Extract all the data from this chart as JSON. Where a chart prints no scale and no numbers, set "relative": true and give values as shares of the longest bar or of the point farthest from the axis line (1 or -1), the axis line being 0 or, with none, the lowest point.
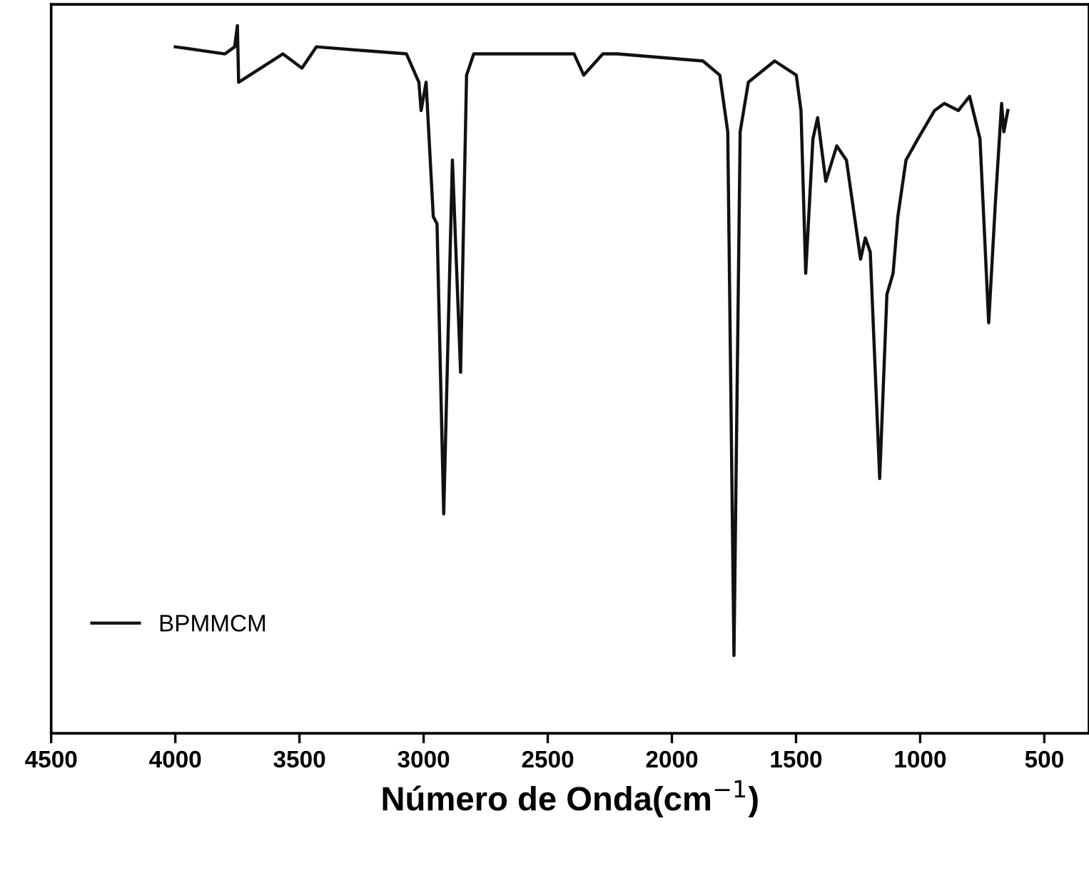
{
  "chart_data": {
    "type": "line",
    "xlabel": "Número de Onda(cm$^{−1}$)",
    "relative": true,
    "xlim": [
      4500,
      320
    ],
    "xticks": [
      4500,
      4000,
      3500,
      3000,
      2500,
      2000,
      1500,
      1000,
      500
    ],
    "legend": "bottom left",
    "grid": false,
    "series": [
      {
        "name": "BPMMCM",
        "color": "#111111",
        "x": [
          4000,
          3800,
          3761,
          3750,
          3745,
          3567,
          3490,
          3432,
          3069,
          3019,
          3010,
          2990,
          2961,
          2946,
          2919,
          2884,
          2851,
          2827,
          2798,
          2394,
          2355,
          2278,
          2221,
          1875,
          1807,
          1775,
          1750,
          1725,
          1692,
          1586,
          1499,
          1480,
          1461,
          1432,
          1413,
          1380,
          1336,
          1297,
          1240,
          1221,
          1201,
          1163,
          1134,
          1109,
          1090,
          1057,
          1009,
          942,
          903,
          846,
          801,
          759,
          724,
          697,
          672,
          663,
          647
        ],
        "values": [
          0.97,
          0.96,
          0.97,
          1.0,
          0.92,
          0.96,
          0.94,
          0.97,
          0.96,
          0.92,
          0.88,
          0.92,
          0.73,
          0.72,
          0.31,
          0.81,
          0.51,
          0.93,
          0.96,
          0.96,
          0.93,
          0.96,
          0.96,
          0.95,
          0.93,
          0.85,
          0.11,
          0.85,
          0.92,
          0.95,
          0.93,
          0.88,
          0.65,
          0.84,
          0.87,
          0.78,
          0.83,
          0.81,
          0.67,
          0.7,
          0.68,
          0.36,
          0.62,
          0.65,
          0.73,
          0.81,
          0.84,
          0.88,
          0.89,
          0.88,
          0.9,
          0.84,
          0.58,
          0.75,
          0.89,
          0.85,
          0.88
        ]
      }
    ]
  }
}
